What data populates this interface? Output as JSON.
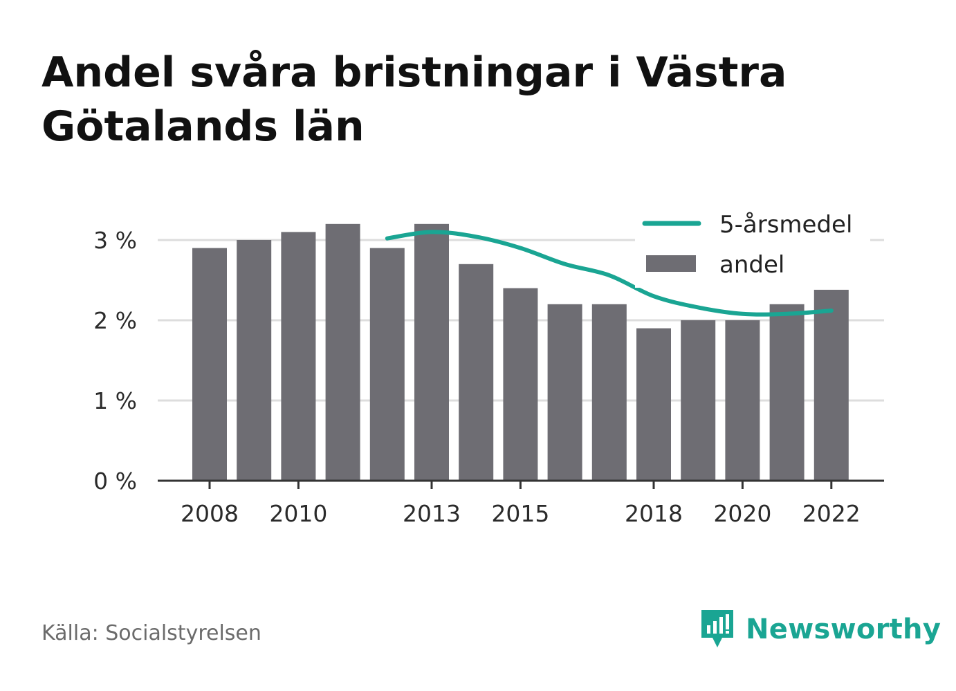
{
  "title": "Andel svåra bristningar i Västra Götalands län",
  "source": "Källa: Socialstyrelsen",
  "brand": "Newsworthy",
  "colors": {
    "bar": "#6e6d73",
    "line": "#1aa593",
    "axis": "#333333",
    "grid": "#dddddd",
    "brand": "#1aa593"
  },
  "chart_data": {
    "type": "bar",
    "x": [
      2008,
      2009,
      2010,
      2011,
      2012,
      2013,
      2014,
      2015,
      2016,
      2017,
      2018,
      2019,
      2020,
      2021,
      2022
    ],
    "xticks": [
      2008,
      2010,
      2013,
      2015,
      2018,
      2020,
      2022
    ],
    "yticks": [
      0,
      1,
      2,
      3
    ],
    "ytick_labels": [
      "0 %",
      "1 %",
      "2 %",
      "3 %"
    ],
    "ylim": [
      0,
      3.3
    ],
    "grid": true,
    "legend_position": "top-right",
    "series": [
      {
        "name": "andel",
        "type": "bar",
        "values": [
          2.9,
          3.0,
          3.1,
          3.2,
          2.9,
          3.2,
          2.7,
          2.4,
          2.2,
          2.2,
          1.9,
          2.0,
          2.0,
          2.2,
          2.38
        ]
      },
      {
        "name": "5-årsmedel",
        "type": "line",
        "x": [
          2012,
          2013,
          2014,
          2015,
          2016,
          2017,
          2018,
          2019,
          2020,
          2021,
          2022
        ],
        "values": [
          3.02,
          3.1,
          3.04,
          2.9,
          2.7,
          2.56,
          2.3,
          2.16,
          2.08,
          2.08,
          2.12
        ]
      }
    ]
  }
}
